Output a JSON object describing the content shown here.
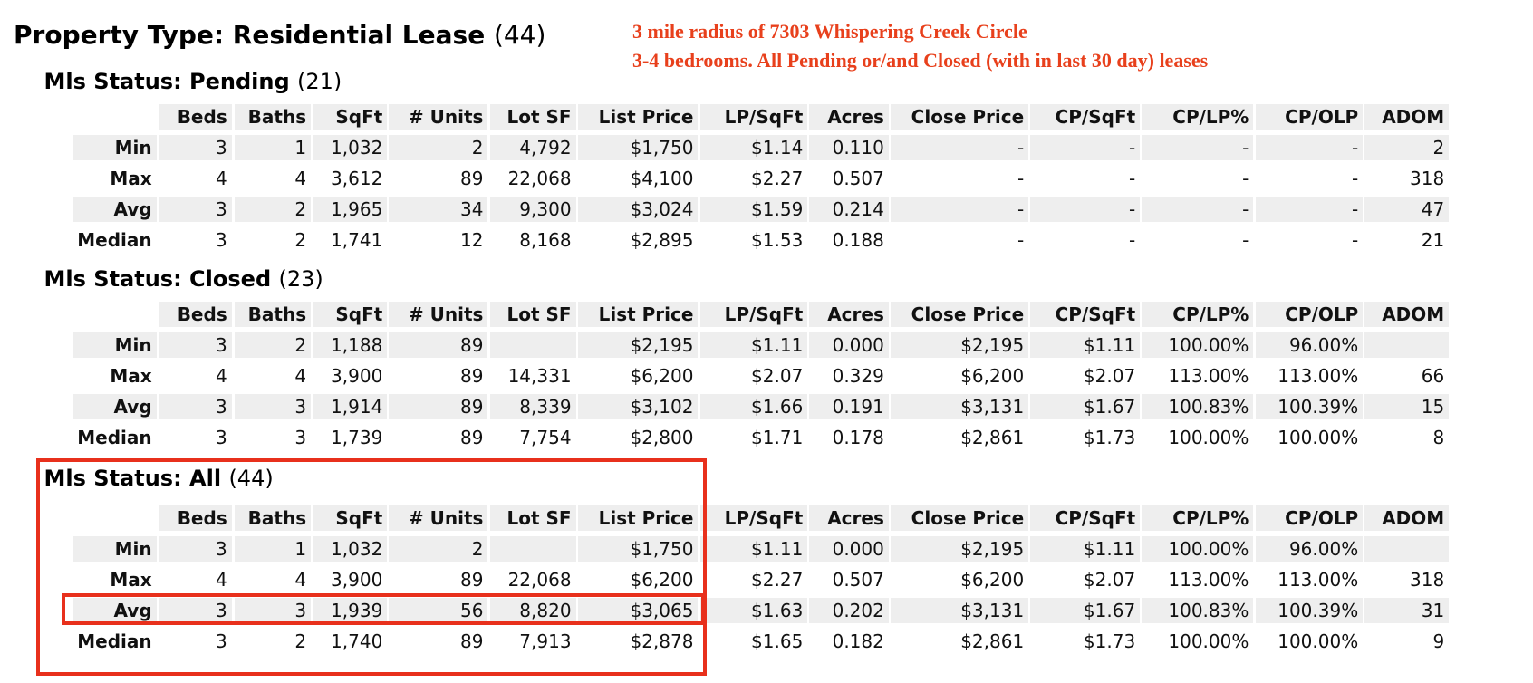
{
  "header": {
    "title": "Property Type: Residential Lease",
    "count": "(44)"
  },
  "annotation": [
    "3 mile radius of 7303 Whispering Creek Circle",
    "3-4 bedrooms. All Pending or/and Closed (with in last 30 day) leases"
  ],
  "sections": [
    {
      "title": "Mls Status: Pending",
      "count": "(21)",
      "columns": [
        "Beds",
        "Baths",
        "SqFt",
        "# Units",
        "Lot SF",
        "List Price",
        "LP/SqFt",
        "Acres",
        "Close Price",
        "CP/SqFt",
        "CP/LP%",
        "CP/OLP",
        "ADOM"
      ],
      "rows": [
        {
          "label": "Min",
          "cells": [
            "3",
            "1",
            "1,032",
            "2",
            "4,792",
            "$1,750",
            "$1.14",
            "0.110",
            "-",
            "-",
            "-",
            "-",
            "2"
          ]
        },
        {
          "label": "Max",
          "cells": [
            "4",
            "4",
            "3,612",
            "89",
            "22,068",
            "$4,100",
            "$2.27",
            "0.507",
            "-",
            "-",
            "-",
            "-",
            "318"
          ]
        },
        {
          "label": "Avg",
          "cells": [
            "3",
            "2",
            "1,965",
            "34",
            "9,300",
            "$3,024",
            "$1.59",
            "0.214",
            "-",
            "-",
            "-",
            "-",
            "47"
          ]
        },
        {
          "label": "Median",
          "cells": [
            "3",
            "2",
            "1,741",
            "12",
            "8,168",
            "$2,895",
            "$1.53",
            "0.188",
            "-",
            "-",
            "-",
            "-",
            "21"
          ]
        }
      ]
    },
    {
      "title": "Mls Status: Closed",
      "count": "(23)",
      "columns": [
        "Beds",
        "Baths",
        "SqFt",
        "# Units",
        "Lot SF",
        "List Price",
        "LP/SqFt",
        "Acres",
        "Close Price",
        "CP/SqFt",
        "CP/LP%",
        "CP/OLP",
        "ADOM"
      ],
      "rows": [
        {
          "label": "Min",
          "cells": [
            "3",
            "2",
            "1,188",
            "89",
            null,
            "$2,195",
            "$1.11",
            "0.000",
            "$2,195",
            "$1.11",
            "100.00%",
            "96.00%",
            null
          ]
        },
        {
          "label": "Max",
          "cells": [
            "4",
            "4",
            "3,900",
            "89",
            "14,331",
            "$6,200",
            "$2.07",
            "0.329",
            "$6,200",
            "$2.07",
            "113.00%",
            "113.00%",
            "66"
          ]
        },
        {
          "label": "Avg",
          "cells": [
            "3",
            "3",
            "1,914",
            "89",
            "8,339",
            "$3,102",
            "$1.66",
            "0.191",
            "$3,131",
            "$1.67",
            "100.83%",
            "100.39%",
            "15"
          ]
        },
        {
          "label": "Median",
          "cells": [
            "3",
            "3",
            "1,739",
            "89",
            "7,754",
            "$2,800",
            "$1.71",
            "0.178",
            "$2,861",
            "$1.73",
            "100.00%",
            "100.00%",
            "8"
          ]
        }
      ]
    },
    {
      "title": "Mls Status: All",
      "count": "(44)",
      "columns": [
        "Beds",
        "Baths",
        "SqFt",
        "# Units",
        "Lot SF",
        "List Price",
        "LP/SqFt",
        "Acres",
        "Close Price",
        "CP/SqFt",
        "CP/LP%",
        "CP/OLP",
        "ADOM"
      ],
      "rows": [
        {
          "label": "Min",
          "cells": [
            "3",
            "1",
            "1,032",
            "2",
            null,
            "$1,750",
            "$1.11",
            "0.000",
            "$2,195",
            "$1.11",
            "100.00%",
            "96.00%",
            null
          ]
        },
        {
          "label": "Max",
          "cells": [
            "4",
            "4",
            "3,900",
            "89",
            "22,068",
            "$6,200",
            "$2.27",
            "0.507",
            "$6,200",
            "$2.07",
            "113.00%",
            "113.00%",
            "318"
          ]
        },
        {
          "label": "Avg",
          "cells": [
            "3",
            "3",
            "1,939",
            "56",
            "8,820",
            "$3,065",
            "$1.63",
            "0.202",
            "$3,131",
            "$1.67",
            "100.83%",
            "100.39%",
            "31"
          ]
        },
        {
          "label": "Median",
          "cells": [
            "3",
            "2",
            "1,740",
            "89",
            "7,913",
            "$2,878",
            "$1.65",
            "0.182",
            "$2,861",
            "$1.73",
            "100.00%",
            "100.00%",
            "9"
          ]
        }
      ]
    }
  ]
}
